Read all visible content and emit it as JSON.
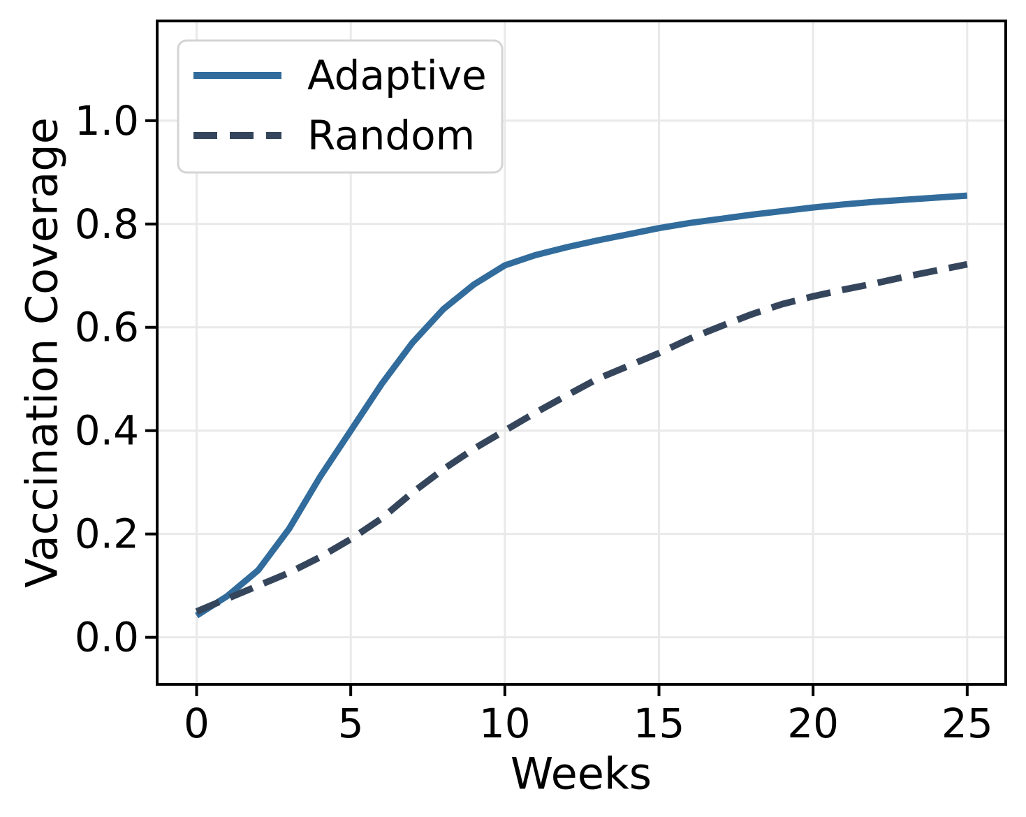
{
  "chart_data": {
    "type": "line",
    "title": "",
    "xlabel": "Weeks",
    "ylabel": "Vaccination Coverage",
    "x": [
      0,
      1,
      2,
      3,
      4,
      5,
      6,
      7,
      8,
      9,
      10,
      11,
      12,
      13,
      14,
      15,
      16,
      17,
      18,
      19,
      20,
      21,
      22,
      23,
      24,
      25
    ],
    "series": [
      {
        "name": "Adaptive",
        "style": "solid",
        "color": "#316C9C",
        "values": [
          0.042,
          0.08,
          0.13,
          0.21,
          0.31,
          0.4,
          0.49,
          0.57,
          0.635,
          0.683,
          0.72,
          0.74,
          0.755,
          0.768,
          0.78,
          0.792,
          0.802,
          0.81,
          0.818,
          0.825,
          0.832,
          0.838,
          0.843,
          0.847,
          0.851,
          0.855
        ]
      },
      {
        "name": "Random",
        "style": "dashed",
        "color": "#35465C",
        "values": [
          0.05,
          0.075,
          0.1,
          0.125,
          0.155,
          0.19,
          0.23,
          0.28,
          0.325,
          0.365,
          0.4,
          0.435,
          0.468,
          0.5,
          0.525,
          0.55,
          0.578,
          0.602,
          0.625,
          0.645,
          0.66,
          0.673,
          0.685,
          0.698,
          0.71,
          0.722
        ]
      }
    ],
    "xticks": [
      0,
      5,
      10,
      15,
      20,
      25
    ],
    "xtick_labels": [
      "0",
      "5",
      "10",
      "15",
      "20",
      "25"
    ],
    "yticks": [
      0.0,
      0.2,
      0.4,
      0.6,
      0.8,
      1.0
    ],
    "ytick_labels": [
      "0.0",
      "0.2",
      "0.4",
      "0.6",
      "0.8",
      "1.0"
    ],
    "xlim": [
      -1.28,
      26.25
    ],
    "ylim": [
      -0.091,
      1.193
    ],
    "grid": true,
    "legend_position": "upper-left",
    "legend_entries": [
      "Adaptive",
      "Random"
    ],
    "background_color": "#ffffff",
    "grid_color": "#e9e9e9",
    "spine_color": "#000000",
    "legend_border_color": "#d4d4d4",
    "text_color": "#000000"
  }
}
